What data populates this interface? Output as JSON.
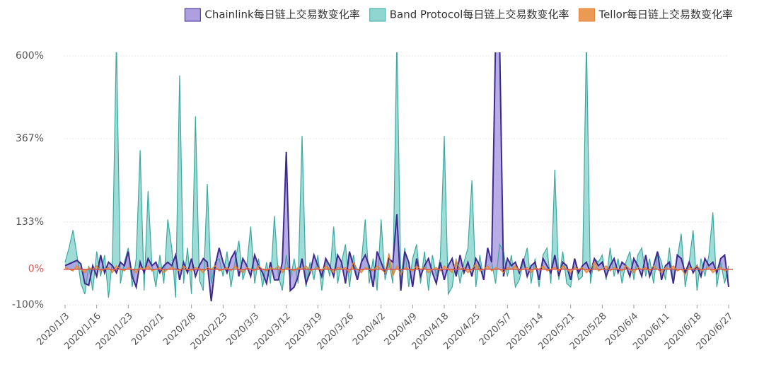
{
  "chart_data": {
    "type": "area",
    "categories": [
      "2020/1/3",
      null,
      null,
      null,
      null,
      null,
      null,
      null,
      "2020/1/16",
      null,
      null,
      null,
      null,
      null,
      null,
      null,
      "2020/1/23",
      null,
      null,
      null,
      null,
      null,
      null,
      null,
      "2020/2/1",
      null,
      null,
      null,
      null,
      null,
      null,
      null,
      "2020/2/8",
      null,
      null,
      null,
      null,
      null,
      null,
      null,
      "2020/2/23",
      null,
      null,
      null,
      null,
      null,
      null,
      null,
      "2020/3/3",
      null,
      null,
      null,
      null,
      null,
      null,
      null,
      "2020/3/12",
      null,
      null,
      null,
      null,
      null,
      null,
      null,
      "2020/3/19",
      null,
      null,
      null,
      null,
      null,
      null,
      null,
      "2020/3/26",
      null,
      null,
      null,
      null,
      null,
      null,
      null,
      "2020/4/2",
      null,
      null,
      null,
      null,
      null,
      null,
      null,
      "2020/4/9",
      null,
      null,
      null,
      null,
      null,
      null,
      null,
      "2020/4/18",
      null,
      null,
      null,
      null,
      null,
      null,
      null,
      "2020/4/25",
      null,
      null,
      null,
      null,
      null,
      null,
      null,
      "2020/5/7",
      null,
      null,
      null,
      null,
      null,
      null,
      null,
      "2020/5/14",
      null,
      null,
      null,
      null,
      null,
      null,
      null,
      "2020/5/21",
      null,
      null,
      null,
      null,
      null,
      null,
      null,
      "2020/5/28",
      null,
      null,
      null,
      null,
      null,
      null,
      null,
      "2020/6/4",
      null,
      null,
      null,
      null,
      null,
      null,
      null,
      "2020/6/11",
      null,
      null,
      null,
      null,
      null,
      null,
      null,
      "2020/6/18",
      null,
      null,
      null,
      null,
      null,
      null,
      null,
      "2020/6/27"
    ],
    "series": [
      {
        "name": "Band Protocol每日链上交易数变化率",
        "color": "#8fd6d0",
        "line_color": "#3aa9a0",
        "values": [
          20,
          60,
          110,
          40,
          -40,
          -70,
          10,
          -60,
          50,
          -20,
          40,
          -80,
          30,
          650,
          -40,
          20,
          60,
          -50,
          30,
          335,
          -60,
          220,
          10,
          -50,
          40,
          -40,
          140,
          60,
          -80,
          545,
          -40,
          60,
          -70,
          430,
          -30,
          -60,
          240,
          -40,
          20,
          30,
          -20,
          50,
          -50,
          20,
          80,
          -30,
          10,
          120,
          -40,
          30,
          -50,
          20,
          -40,
          150,
          -20,
          -60,
          40,
          -30,
          30,
          -40,
          375,
          -50,
          20,
          -30,
          40,
          -60,
          30,
          -20,
          120,
          -40,
          20,
          70,
          -50,
          40,
          -30,
          20,
          140,
          -40,
          30,
          -60,
          140,
          -30,
          20,
          -40,
          650,
          -30,
          60,
          -50,
          30,
          70,
          -40,
          50,
          -60,
          40,
          -20,
          30,
          375,
          -70,
          -50,
          30,
          -40,
          20,
          60,
          250,
          -50,
          40,
          -30,
          60,
          20,
          -40,
          70,
          50,
          -20,
          40,
          -50,
          -30,
          20,
          60,
          -40,
          30,
          -50,
          40,
          60,
          -40,
          280,
          -30,
          50,
          -40,
          -50,
          30,
          -30,
          -20,
          650,
          -40,
          30,
          20,
          40,
          -30,
          60,
          -20,
          30,
          -40,
          20,
          50,
          -30,
          40,
          60,
          -20,
          30,
          -40,
          50,
          20,
          -30,
          60,
          -40,
          30,
          100,
          -50,
          20,
          110,
          -60,
          30,
          -20,
          40,
          160,
          -50,
          20,
          -40,
          10
        ]
      },
      {
        "name": "Chainlink每日链上交易数变化率",
        "color": "#ad9fe0",
        "line_color": "#3e2a8f",
        "values": [
          10,
          15,
          20,
          25,
          15,
          -40,
          -45,
          10,
          -20,
          40,
          -10,
          20,
          10,
          -10,
          20,
          10,
          50,
          -20,
          -50,
          20,
          -10,
          30,
          10,
          20,
          -10,
          10,
          20,
          10,
          40,
          -30,
          20,
          -10,
          30,
          -20,
          10,
          30,
          20,
          -90,
          10,
          60,
          20,
          -10,
          30,
          50,
          -20,
          30,
          10,
          -20,
          40,
          10,
          -10,
          -40,
          20,
          -30,
          -30,
          20,
          330,
          -60,
          -50,
          -20,
          30,
          -40,
          -10,
          40,
          10,
          -20,
          30,
          10,
          -20,
          40,
          20,
          -40,
          50,
          10,
          -30,
          20,
          40,
          10,
          -50,
          50,
          20,
          -10,
          30,
          20,
          155,
          -60,
          50,
          20,
          -50,
          30,
          -20,
          10,
          30,
          -10,
          -40,
          20,
          -30,
          10,
          30,
          -20,
          40,
          -10,
          20,
          -20,
          30,
          10,
          -30,
          60,
          20,
          650,
          650,
          -20,
          30,
          10,
          20,
          -10,
          30,
          -20,
          10,
          20,
          -30,
          30,
          10,
          -10,
          40,
          -20,
          20,
          10,
          -30,
          30,
          -10,
          10,
          20,
          -10,
          30,
          10,
          20,
          -20,
          10,
          30,
          -10,
          20,
          10,
          -20,
          30,
          10,
          -20,
          40,
          -20,
          10,
          50,
          -30,
          10,
          20,
          -40,
          40,
          30,
          -10,
          20,
          -10,
          10,
          -20,
          30,
          10,
          20,
          -10,
          30,
          40,
          -50
        ]
      },
      {
        "name": "Tellor每日链上交易数变化率",
        "color": "#eb9a55",
        "line_color": "#e0853a",
        "values": [
          5,
          0,
          -5,
          10,
          0,
          -10,
          5,
          0,
          10,
          -5,
          0,
          5,
          -10,
          10,
          0,
          -5,
          5,
          0,
          -10,
          5,
          0,
          10,
          -5,
          0,
          5,
          -10,
          0,
          5,
          0,
          -5,
          10,
          0,
          -5,
          5,
          0,
          -10,
          5,
          0,
          10,
          -5,
          0,
          5,
          -5,
          10,
          0,
          -10,
          5,
          0,
          -5,
          10,
          0,
          -5,
          5,
          0,
          10,
          -10,
          5,
          0,
          -5,
          5,
          0,
          10,
          -5,
          0,
          5,
          -5,
          10,
          0,
          -10,
          5,
          0,
          5,
          -10,
          20,
          0,
          -10,
          5,
          0,
          -5,
          10,
          0,
          -10,
          45,
          -20,
          10,
          -15,
          5,
          0,
          -5,
          10,
          0,
          5,
          -10,
          0,
          5,
          -5,
          10,
          0,
          -10,
          25,
          0,
          5,
          -10,
          0,
          15,
          -5,
          0,
          10,
          -5,
          5,
          0,
          -10,
          5,
          0,
          10,
          -5,
          0,
          5,
          -10,
          5,
          0,
          10,
          -5,
          0,
          5,
          -5,
          10,
          0,
          -10,
          5,
          0,
          5,
          -10,
          0,
          20,
          -5,
          0,
          10,
          -5,
          5,
          0,
          -5,
          10,
          0,
          -10,
          5,
          0,
          5,
          -5,
          10,
          0,
          -10,
          5,
          0,
          10,
          -5,
          0,
          -15,
          5,
          0,
          10,
          -5,
          0,
          5,
          -10,
          0,
          5,
          -5,
          0
        ]
      }
    ],
    "ylim": [
      -100,
      600
    ],
    "yticks": [
      {
        "value": -100,
        "label": "-100%"
      },
      {
        "value": 0,
        "label": "0%"
      },
      {
        "value": 133,
        "label": "133%"
      },
      {
        "value": 367,
        "label": "367%"
      },
      {
        "value": 600,
        "label": "600%"
      }
    ],
    "grid": true,
    "legend": "top-right",
    "zero_line_color": "#d9534f"
  }
}
